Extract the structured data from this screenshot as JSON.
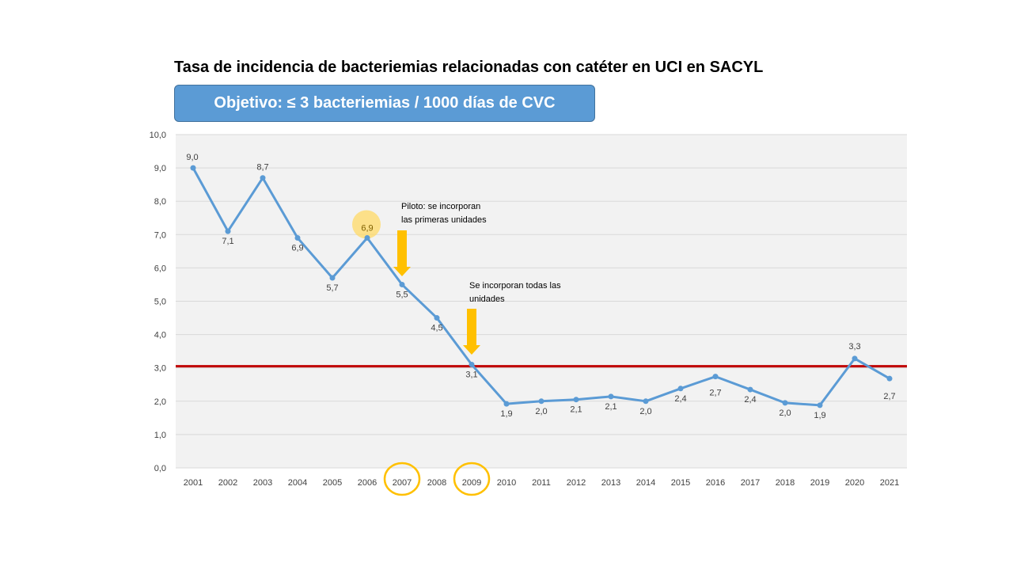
{
  "title": "Tasa de incidencia de bacteriemias relacionadas con catéter en UCI en SACYL",
  "goal_box": "Objetivo: ≤ 3 bacteriemias / 1000 días de CVC",
  "annotations": {
    "pilot_line1": "Piloto: se incorporan",
    "pilot_line2": "las primeras unidades",
    "all_line1": "Se incorporan todas las",
    "all_line2": "unidades"
  },
  "colors": {
    "series": "#5b9bd5",
    "target": "#c00000",
    "arrow": "#ffc000",
    "highlight": "#ffd966",
    "plot_bg": "#f2f2f2",
    "grid": "#d9d9d9"
  },
  "chart_data": {
    "type": "line",
    "title": "Tasa de incidencia de bacteriemias relacionadas con catéter en UCI en SACYL",
    "categories": [
      "2001",
      "2002",
      "2003",
      "2004",
      "2005",
      "2006",
      "2007",
      "2008",
      "2009",
      "2010",
      "2011",
      "2012",
      "2013",
      "2014",
      "2015",
      "2016",
      "2017",
      "2018",
      "2019",
      "2020",
      "2021"
    ],
    "series": [
      {
        "name": "Tasa de incidencia",
        "values": [
          9.0,
          7.1,
          8.7,
          6.9,
          5.7,
          6.9,
          5.5,
          4.5,
          3.1,
          1.92,
          2.0,
          2.05,
          2.14,
          2.0,
          2.38,
          2.74,
          2.35,
          1.95,
          1.88,
          3.28,
          2.68
        ],
        "labels": [
          "9,0",
          "7,1",
          "8,7",
          "6,9",
          "5,7",
          "6,9",
          "5,5",
          "4,5",
          "3,1",
          "1,9",
          "2,0",
          "2,1",
          "2,1",
          "2,0",
          "2,4",
          "2,7",
          "2,4",
          "2,0",
          "1,9",
          "3,3",
          "2,7"
        ]
      }
    ],
    "target_line": 3.05,
    "yticks": [
      "0,0",
      "1,0",
      "2,0",
      "3,0",
      "4,0",
      "5,0",
      "6,0",
      "7,0",
      "8,0",
      "9,0",
      "10,0"
    ],
    "ylim": [
      0,
      10
    ],
    "grid": true,
    "highlighted_categories": [
      "2007",
      "2009"
    ],
    "highlighted_point": "2006",
    "arrow_categories": [
      "2007",
      "2009"
    ],
    "xlabel": "",
    "ylabel": ""
  }
}
